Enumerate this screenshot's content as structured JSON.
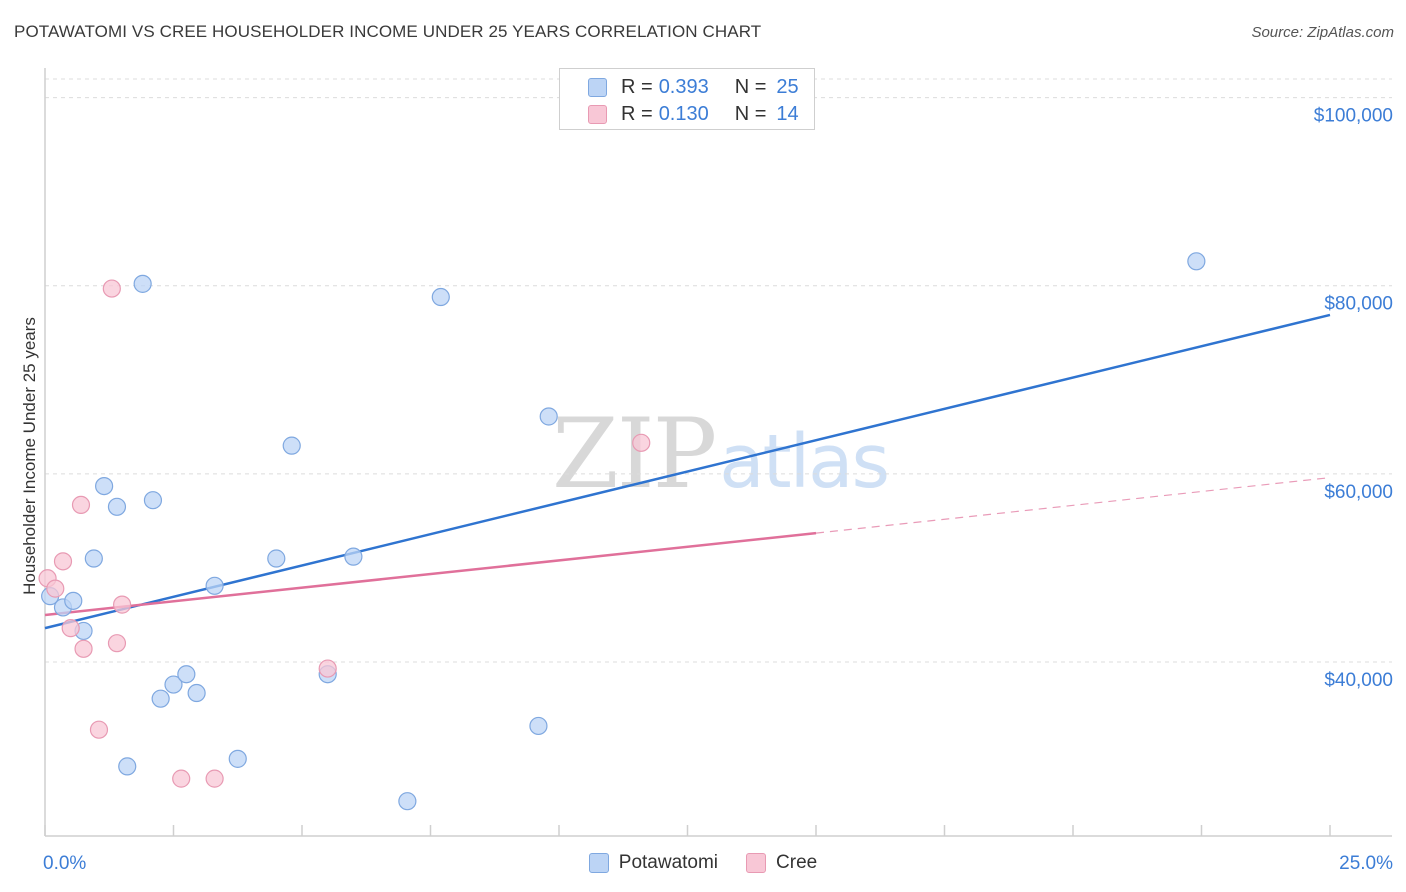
{
  "title": "POTAWATOMI VS CREE HOUSEHOLDER INCOME UNDER 25 YEARS CORRELATION CHART",
  "source": "Source: ZipAtlas.com",
  "watermark": {
    "part1": "ZIP",
    "part2": "atlas"
  },
  "legend": {
    "rows": [
      {
        "r_label": "R =",
        "r_value": "0.393",
        "n_label": "N =",
        "n_value": "25"
      },
      {
        "r_label": "R =",
        "r_value": "0.130",
        "n_label": "N =",
        "n_value": "14"
      }
    ]
  },
  "bottom_legend": {
    "series1": "Potawatomi",
    "series2": "Cree"
  },
  "colors": {
    "blue_line": "#2f74d0",
    "pink_line": "#e0709a",
    "blue_fill": "#bcd4f5",
    "pink_fill": "#f8c7d6",
    "axis_text": "#3c7dd6"
  },
  "chart_data": {
    "type": "scatter",
    "title": "POTAWATOMI VS CREE HOUSEHOLDER INCOME UNDER 25 YEARS CORRELATION CHART",
    "xlabel": "",
    "ylabel": "Householder Income Under 25 years",
    "xlim": [
      0,
      25
    ],
    "ylim": [
      21500,
      104000
    ],
    "x_tick_labels": [
      "0.0%",
      "25.0%"
    ],
    "y_ticks": [
      40000,
      60000,
      80000,
      100000
    ],
    "y_tick_labels": [
      "$40,000",
      "$60,000",
      "$80,000",
      "$100,000"
    ],
    "series": [
      {
        "name": "Potawatomi",
        "points": [
          [
            0.1,
            47.0
          ],
          [
            0.35,
            45.8
          ],
          [
            0.55,
            46.5
          ],
          [
            0.75,
            43.3
          ],
          [
            0.95,
            51.0
          ],
          [
            1.15,
            58.7
          ],
          [
            1.4,
            56.5
          ],
          [
            1.6,
            28.9
          ],
          [
            1.9,
            80.2
          ],
          [
            2.1,
            57.2
          ],
          [
            2.25,
            36.1
          ],
          [
            2.5,
            37.6
          ],
          [
            2.75,
            38.7
          ],
          [
            2.95,
            36.7
          ],
          [
            3.3,
            48.1
          ],
          [
            3.75,
            29.7
          ],
          [
            4.5,
            51.0
          ],
          [
            4.8,
            63.0
          ],
          [
            5.5,
            38.7
          ],
          [
            6.0,
            51.2
          ],
          [
            7.05,
            25.2
          ],
          [
            7.7,
            78.8
          ],
          [
            9.6,
            33.2
          ],
          [
            9.8,
            66.1
          ],
          [
            22.4,
            82.6
          ]
        ],
        "trend": {
          "x": [
            0,
            25
          ],
          "y": [
            43.6,
            76.9
          ]
        }
      },
      {
        "name": "Cree",
        "points": [
          [
            0.05,
            48.9
          ],
          [
            0.2,
            47.8
          ],
          [
            0.35,
            50.7
          ],
          [
            0.5,
            43.6
          ],
          [
            0.7,
            56.7
          ],
          [
            0.75,
            41.4
          ],
          [
            1.05,
            32.8
          ],
          [
            1.3,
            79.7
          ],
          [
            1.4,
            42.0
          ],
          [
            1.5,
            46.1
          ],
          [
            2.65,
            27.6
          ],
          [
            3.3,
            27.6
          ],
          [
            5.5,
            39.3
          ],
          [
            11.6,
            63.3
          ]
        ],
        "trend": {
          "x": [
            0,
            15
          ],
          "y": [
            45.0,
            53.7
          ]
        },
        "trend_dashed": {
          "x": [
            15,
            25
          ],
          "y": [
            53.7,
            59.6
          ]
        }
      }
    ],
    "units_note": "y values in thousands of dollars; x values in percent"
  }
}
